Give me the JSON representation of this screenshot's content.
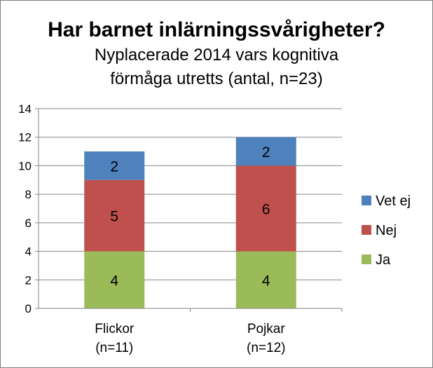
{
  "chart_data": {
    "type": "bar",
    "stacked": true,
    "title": "Har barnet inlärningssvårigheter?",
    "subtitle_lines": [
      "Nyplacerade 2014 vars kognitiva",
      "förmåga utretts (antal, n=23)"
    ],
    "categories": [
      {
        "line1": "Flickor",
        "line2": "(n=11)"
      },
      {
        "line1": "Pojkar",
        "line2": "(n=12)"
      }
    ],
    "series": [
      {
        "name": "Ja",
        "values": [
          4,
          4
        ],
        "color": "#9bbb59"
      },
      {
        "name": "Nej",
        "values": [
          5,
          6
        ],
        "color": "#c0504d"
      },
      {
        "name": "Vet ej",
        "values": [
          2,
          2
        ],
        "color": "#4f81bd"
      }
    ],
    "ylim": [
      0,
      14
    ],
    "yticks": [
      "0",
      "2",
      "4",
      "6",
      "8",
      "10",
      "12",
      "14"
    ],
    "grid": true,
    "legend_position": "right",
    "legend_order": [
      "Vet ej",
      "Nej",
      "Ja"
    ]
  }
}
